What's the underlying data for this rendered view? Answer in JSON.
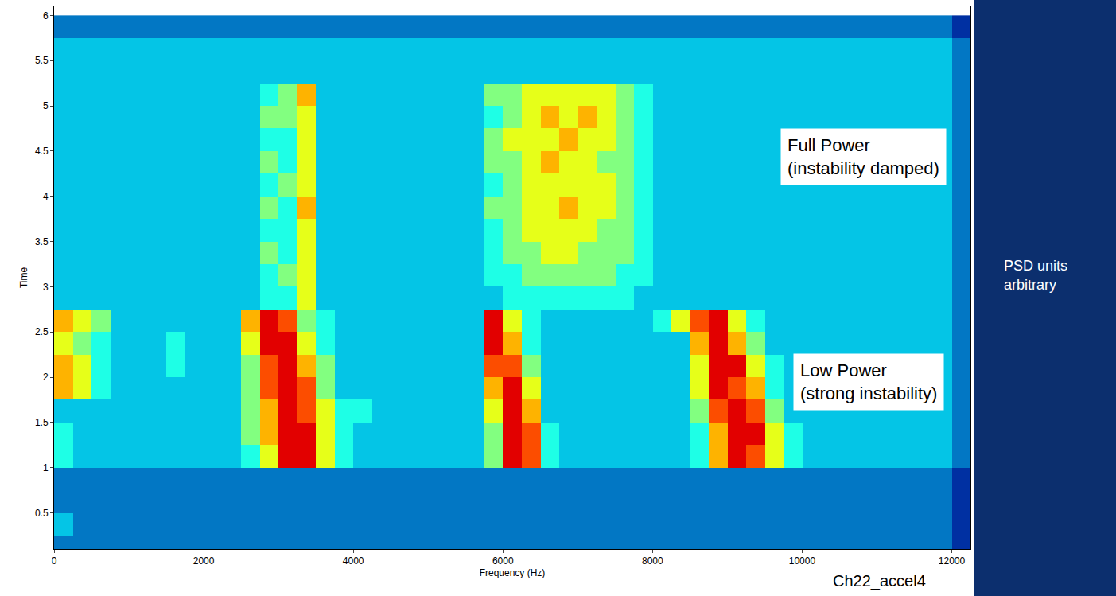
{
  "chart_data": {
    "type": "heatmap",
    "x_label": "Frequency (Hz)",
    "y_label": "Time",
    "x": [
      125,
      375,
      625,
      875,
      1125,
      1375,
      1625,
      1875,
      2125,
      2375,
      2625,
      2875,
      3125,
      3375,
      3625,
      3875,
      4125,
      4375,
      4625,
      4875,
      5125,
      5375,
      5625,
      5875,
      6125,
      6375,
      6625,
      6875,
      7125,
      7375,
      7625,
      7875,
      8125,
      8375,
      8625,
      8875,
      9125,
      9375,
      9625,
      9875,
      10125,
      10375,
      10625,
      10875,
      11125,
      11375,
      11625,
      11875,
      12125,
      12375
    ],
    "y": [
      0.125,
      0.375,
      0.625,
      0.875,
      1.125,
      1.375,
      1.625,
      1.875,
      2.125,
      2.375,
      2.625,
      2.875,
      3.125,
      3.375,
      3.625,
      3.875,
      4.125,
      4.375,
      4.625,
      4.875,
      5.125,
      5.375,
      5.625,
      5.875
    ],
    "z": [
      [
        2,
        2,
        2,
        2,
        2,
        2,
        2,
        2,
        2,
        2,
        2,
        2,
        2,
        2,
        2,
        2,
        2,
        2,
        2,
        2,
        2,
        2,
        2,
        2,
        2,
        2,
        2,
        2,
        2,
        2,
        2,
        2,
        2,
        2,
        2,
        2,
        2,
        2,
        2,
        2,
        2,
        2,
        2,
        2,
        2,
        2,
        2,
        2,
        1,
        1
      ],
      [
        3,
        2,
        2,
        2,
        2,
        2,
        2,
        2,
        2,
        2,
        2,
        2,
        2,
        2,
        2,
        2,
        2,
        2,
        2,
        2,
        2,
        2,
        2,
        2,
        2,
        2,
        2,
        2,
        2,
        2,
        2,
        2,
        2,
        2,
        2,
        2,
        2,
        2,
        2,
        2,
        2,
        2,
        2,
        2,
        2,
        2,
        2,
        2,
        1,
        1
      ],
      [
        2,
        2,
        2,
        2,
        2,
        2,
        2,
        2,
        2,
        2,
        2,
        2,
        2,
        2,
        2,
        2,
        2,
        2,
        2,
        2,
        2,
        2,
        2,
        2,
        2,
        2,
        2,
        2,
        2,
        2,
        2,
        2,
        2,
        2,
        2,
        2,
        2,
        2,
        2,
        2,
        2,
        2,
        2,
        2,
        2,
        2,
        2,
        2,
        1,
        1
      ],
      [
        2,
        2,
        2,
        2,
        2,
        2,
        2,
        2,
        2,
        2,
        2,
        2,
        2,
        2,
        2,
        2,
        2,
        2,
        2,
        2,
        2,
        2,
        2,
        2,
        2,
        2,
        2,
        2,
        2,
        2,
        2,
        2,
        2,
        2,
        2,
        2,
        2,
        2,
        2,
        2,
        2,
        2,
        2,
        2,
        2,
        2,
        2,
        2,
        1,
        1
      ],
      [
        4,
        3,
        3,
        3,
        3,
        3,
        3,
        3,
        3,
        3,
        4,
        6,
        9,
        9,
        6,
        4,
        3,
        3,
        3,
        3,
        3,
        3,
        3,
        5,
        9,
        8,
        4,
        3,
        3,
        3,
        3,
        3,
        3,
        3,
        4,
        7,
        9,
        8,
        6,
        4,
        3,
        3,
        3,
        3,
        3,
        3,
        3,
        3,
        2,
        2
      ],
      [
        4,
        3,
        3,
        3,
        3,
        3,
        3,
        3,
        3,
        3,
        5,
        7,
        9,
        9,
        6,
        4,
        3,
        3,
        3,
        3,
        3,
        3,
        3,
        5,
        9,
        8,
        4,
        3,
        3,
        3,
        3,
        3,
        3,
        3,
        4,
        7,
        9,
        9,
        6,
        4,
        3,
        3,
        3,
        3,
        3,
        3,
        3,
        3,
        2,
        2
      ],
      [
        3,
        3,
        3,
        3,
        3,
        3,
        3,
        3,
        3,
        3,
        5,
        7,
        9,
        8,
        6,
        4,
        4,
        3,
        3,
        3,
        3,
        3,
        3,
        6,
        9,
        7,
        3,
        3,
        3,
        3,
        3,
        3,
        3,
        3,
        5,
        8,
        9,
        8,
        5,
        3,
        3,
        3,
        3,
        3,
        3,
        3,
        3,
        3,
        2,
        2
      ],
      [
        7,
        6,
        4,
        3,
        3,
        3,
        3,
        3,
        3,
        3,
        5,
        8,
        9,
        8,
        5,
        3,
        3,
        3,
        3,
        3,
        3,
        3,
        3,
        7,
        9,
        6,
        3,
        3,
        3,
        3,
        3,
        3,
        3,
        3,
        6,
        9,
        8,
        7,
        4,
        3,
        3,
        3,
        3,
        3,
        3,
        3,
        3,
        3,
        2,
        2
      ],
      [
        7,
        6,
        4,
        3,
        3,
        3,
        4,
        3,
        3,
        3,
        5,
        8,
        9,
        7,
        5,
        3,
        3,
        3,
        3,
        3,
        3,
        3,
        3,
        8,
        8,
        5,
        3,
        3,
        3,
        3,
        3,
        3,
        3,
        3,
        6,
        9,
        9,
        6,
        4,
        3,
        3,
        3,
        3,
        3,
        3,
        3,
        3,
        3,
        2,
        2
      ],
      [
        6,
        5,
        4,
        3,
        3,
        3,
        4,
        3,
        3,
        3,
        6,
        9,
        9,
        6,
        4,
        3,
        3,
        3,
        3,
        3,
        3,
        3,
        3,
        9,
        7,
        4,
        3,
        3,
        3,
        3,
        3,
        3,
        3,
        3,
        7,
        9,
        7,
        5,
        3,
        3,
        3,
        3,
        3,
        3,
        3,
        3,
        3,
        3,
        2,
        2
      ],
      [
        7,
        6,
        5,
        3,
        3,
        3,
        3,
        3,
        3,
        3,
        7,
        9,
        8,
        5,
        4,
        3,
        3,
        3,
        3,
        3,
        3,
        3,
        3,
        9,
        6,
        4,
        3,
        3,
        3,
        3,
        3,
        3,
        4,
        6,
        8,
        9,
        6,
        4,
        3,
        3,
        3,
        3,
        3,
        3,
        3,
        3,
        3,
        3,
        2,
        2
      ],
      [
        3,
        3,
        3,
        3,
        3,
        3,
        3,
        3,
        3,
        3,
        3,
        4,
        4,
        6,
        3,
        3,
        3,
        3,
        3,
        3,
        3,
        3,
        3,
        3,
        4,
        4,
        4,
        4,
        4,
        4,
        4,
        3,
        3,
        3,
        3,
        3,
        3,
        3,
        3,
        3,
        3,
        3,
        3,
        3,
        3,
        3,
        3,
        3,
        2,
        2
      ],
      [
        3,
        3,
        3,
        3,
        3,
        3,
        3,
        3,
        3,
        3,
        3,
        4,
        5,
        6,
        3,
        3,
        3,
        3,
        3,
        3,
        3,
        3,
        3,
        4,
        4,
        5,
        5,
        5,
        5,
        5,
        4,
        4,
        3,
        3,
        3,
        3,
        3,
        3,
        3,
        3,
        3,
        3,
        3,
        3,
        3,
        3,
        3,
        3,
        2,
        2
      ],
      [
        3,
        3,
        3,
        3,
        3,
        3,
        3,
        3,
        3,
        3,
        3,
        5,
        4,
        6,
        3,
        3,
        3,
        3,
        3,
        3,
        3,
        3,
        3,
        4,
        5,
        5,
        6,
        6,
        5,
        5,
        5,
        4,
        3,
        3,
        3,
        3,
        3,
        3,
        3,
        3,
        3,
        3,
        3,
        3,
        3,
        3,
        3,
        3,
        2,
        2
      ],
      [
        3,
        3,
        3,
        3,
        3,
        3,
        3,
        3,
        3,
        3,
        3,
        4,
        4,
        6,
        3,
        3,
        3,
        3,
        3,
        3,
        3,
        3,
        3,
        4,
        5,
        6,
        6,
        6,
        6,
        5,
        5,
        4,
        3,
        3,
        3,
        3,
        3,
        3,
        3,
        3,
        3,
        3,
        3,
        3,
        3,
        3,
        3,
        3,
        2,
        2
      ],
      [
        3,
        3,
        3,
        3,
        3,
        3,
        3,
        3,
        3,
        3,
        3,
        5,
        4,
        7,
        3,
        3,
        3,
        3,
        3,
        3,
        3,
        3,
        3,
        5,
        5,
        6,
        6,
        7,
        6,
        6,
        5,
        4,
        3,
        3,
        3,
        3,
        3,
        3,
        3,
        3,
        3,
        3,
        3,
        3,
        3,
        3,
        3,
        3,
        2,
        2
      ],
      [
        3,
        3,
        3,
        3,
        3,
        3,
        3,
        3,
        3,
        3,
        3,
        4,
        5,
        6,
        3,
        3,
        3,
        3,
        3,
        3,
        3,
        3,
        3,
        4,
        5,
        6,
        6,
        6,
        6,
        6,
        5,
        4,
        3,
        3,
        3,
        3,
        3,
        3,
        3,
        3,
        3,
        3,
        3,
        3,
        3,
        3,
        3,
        3,
        2,
        2
      ],
      [
        3,
        3,
        3,
        3,
        3,
        3,
        3,
        3,
        3,
        3,
        3,
        5,
        4,
        6,
        3,
        3,
        3,
        3,
        3,
        3,
        3,
        3,
        3,
        5,
        5,
        6,
        7,
        6,
        6,
        5,
        5,
        4,
        3,
        3,
        3,
        3,
        3,
        3,
        3,
        3,
        3,
        3,
        3,
        3,
        3,
        3,
        3,
        3,
        2,
        2
      ],
      [
        3,
        3,
        3,
        3,
        3,
        3,
        3,
        3,
        3,
        3,
        3,
        4,
        4,
        6,
        3,
        3,
        3,
        3,
        3,
        3,
        3,
        3,
        3,
        5,
        6,
        6,
        6,
        7,
        6,
        6,
        5,
        4,
        3,
        3,
        3,
        3,
        3,
        3,
        3,
        3,
        3,
        3,
        3,
        3,
        3,
        3,
        3,
        3,
        2,
        2
      ],
      [
        3,
        3,
        3,
        3,
        3,
        3,
        3,
        3,
        3,
        3,
        3,
        5,
        5,
        6,
        3,
        3,
        3,
        3,
        3,
        3,
        3,
        3,
        3,
        4,
        5,
        6,
        7,
        6,
        7,
        6,
        5,
        4,
        3,
        3,
        3,
        3,
        3,
        3,
        3,
        3,
        3,
        3,
        3,
        3,
        3,
        3,
        3,
        3,
        2,
        2
      ],
      [
        3,
        3,
        3,
        3,
        3,
        3,
        3,
        3,
        3,
        3,
        3,
        4,
        5,
        7,
        3,
        3,
        3,
        3,
        3,
        3,
        3,
        3,
        3,
        5,
        5,
        6,
        6,
        6,
        6,
        6,
        5,
        4,
        3,
        3,
        3,
        3,
        3,
        3,
        3,
        3,
        3,
        3,
        3,
        3,
        3,
        3,
        3,
        3,
        2,
        2
      ],
      [
        3,
        3,
        3,
        3,
        3,
        3,
        3,
        3,
        3,
        3,
        3,
        3,
        3,
        3,
        3,
        3,
        3,
        3,
        3,
        3,
        3,
        3,
        3,
        3,
        3,
        3,
        3,
        3,
        3,
        3,
        3,
        3,
        3,
        3,
        3,
        3,
        3,
        3,
        3,
        3,
        3,
        3,
        3,
        3,
        3,
        3,
        3,
        3,
        2,
        2
      ],
      [
        3,
        3,
        3,
        3,
        3,
        3,
        3,
        3,
        3,
        3,
        3,
        3,
        3,
        3,
        3,
        3,
        3,
        3,
        3,
        3,
        3,
        3,
        3,
        3,
        3,
        3,
        3,
        3,
        3,
        3,
        3,
        3,
        3,
        3,
        3,
        3,
        3,
        3,
        3,
        3,
        3,
        3,
        3,
        3,
        3,
        3,
        3,
        3,
        2,
        2
      ],
      [
        2,
        2,
        2,
        2,
        2,
        2,
        2,
        2,
        2,
        2,
        2,
        2,
        2,
        2,
        2,
        2,
        2,
        2,
        2,
        2,
        2,
        2,
        2,
        2,
        2,
        2,
        2,
        2,
        2,
        2,
        2,
        2,
        2,
        2,
        2,
        2,
        2,
        2,
        2,
        2,
        2,
        2,
        2,
        2,
        2,
        2,
        2,
        2,
        1,
        1
      ]
    ],
    "z_range": [
      0,
      10
    ],
    "xlim": [
      0,
      12250
    ],
    "xticks": [
      0,
      2000,
      4000,
      6000,
      8000,
      10000,
      12000
    ],
    "ylim": [
      0.1,
      6.1
    ],
    "yticks": [
      0.5,
      1,
      1.5,
      2,
      2.5,
      3,
      3.5,
      4,
      4.5,
      5,
      5.5,
      6
    ],
    "grid": false,
    "annotations": [
      [
        "Full Power",
        "(instability damped)"
      ],
      [
        "Low Power",
        "(strong instability)"
      ]
    ],
    "side_note": "PSD units arbitrary",
    "channel_label": "Ch22_accel4"
  }
}
